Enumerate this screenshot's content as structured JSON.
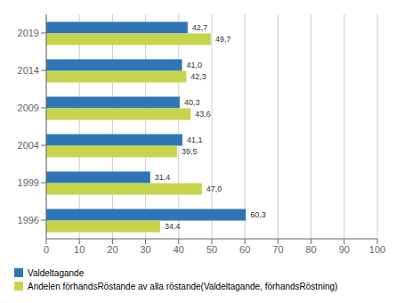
{
  "chart_data": {
    "type": "bar",
    "orientation": "horizontal",
    "categories": [
      "1996",
      "1999",
      "2004",
      "2009",
      "2014",
      "2019"
    ],
    "series": [
      {
        "name": "Valdeltagande",
        "color": "#2E75B6",
        "values": [
          60.3,
          31.4,
          41.1,
          40.3,
          41.0,
          42.7
        ],
        "value_labels": [
          "60,3",
          "31,4",
          "41,1",
          "40,3",
          "41,0",
          "42,7"
        ]
      },
      {
        "name": "Andelen förhandsRöstande av alla röstande(Valdeltagande, förhandsRöstning)",
        "color": "#C5D44A",
        "values": [
          34.4,
          47.0,
          39.5,
          43.6,
          42.3,
          49.7
        ],
        "value_labels": [
          "34,4",
          "47,0",
          "39,5",
          "43,6",
          "42,3",
          "49,7"
        ]
      }
    ],
    "xlim": [
      0,
      100
    ],
    "xticks": [
      0,
      10,
      20,
      30,
      40,
      50,
      60,
      70,
      80,
      90,
      100
    ],
    "grid": true,
    "data_labels": true,
    "legend": "bottom"
  }
}
